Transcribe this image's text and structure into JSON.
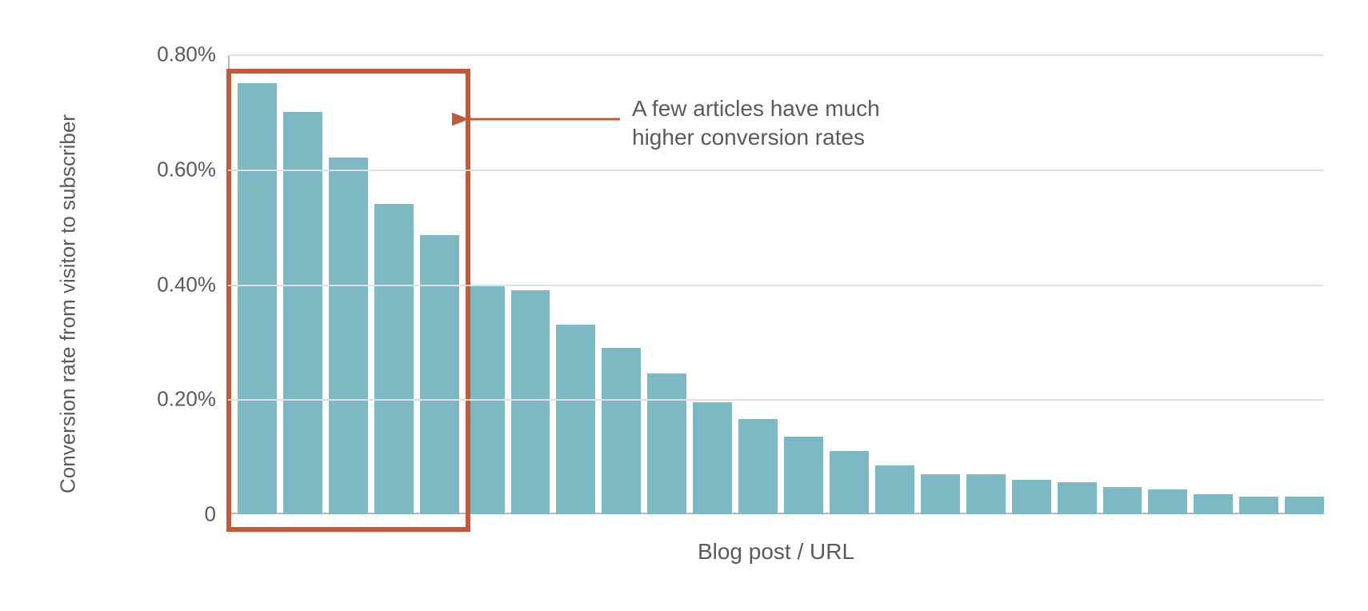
{
  "chart": {
    "type": "bar",
    "y_axis_label": "Conversion rate from visitor to subscriber",
    "x_axis_label": "Blog post / URL",
    "y_ticks": [
      {
        "value": 0,
        "label": "0"
      },
      {
        "value": 0.2,
        "label": "0.20%"
      },
      {
        "value": 0.4,
        "label": "0.40%"
      },
      {
        "value": 0.6,
        "label": "0.60%"
      },
      {
        "value": 0.8,
        "label": "0.80%"
      }
    ],
    "ylim_min": 0,
    "ylim_max": 0.8,
    "values": [
      0.75,
      0.7,
      0.62,
      0.54,
      0.485,
      0.4,
      0.39,
      0.33,
      0.29,
      0.245,
      0.195,
      0.165,
      0.135,
      0.11,
      0.085,
      0.07,
      0.07,
      0.06,
      0.055,
      0.048,
      0.043,
      0.035,
      0.03,
      0.03
    ],
    "bar_color": "#7db9c2",
    "background_color": "#ffffff",
    "grid_color": "#e0e0e0",
    "axis_color": "#b8b8b8",
    "text_color": "#5a5a5a",
    "label_fontsize": 26,
    "axis_label_fontsize": 28,
    "bar_gap": 8,
    "highlight": {
      "border_color": "#c25a3a",
      "border_width": 6,
      "first_bar_index": 0,
      "last_bar_index": 4
    },
    "annotation": {
      "line1": "A few articles have much",
      "line2": "higher conversion rates",
      "arrow_color": "#c25a3a",
      "text_color": "#5a5a5a",
      "fontsize": 28
    }
  }
}
